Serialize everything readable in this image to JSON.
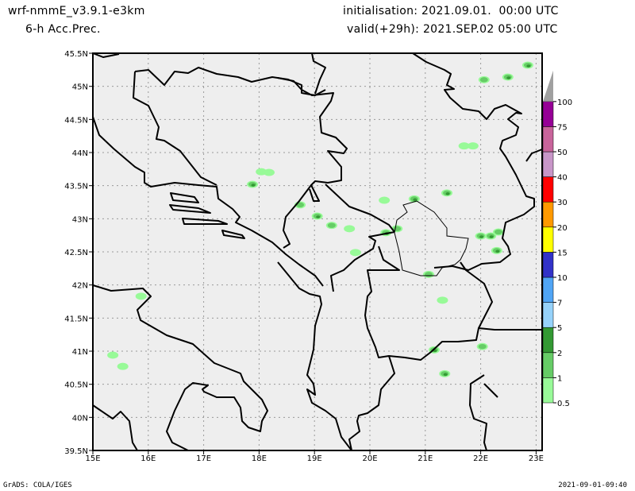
{
  "header": {
    "model": "wrf-nmmE_v3.9.1-e3km",
    "field": "6-h Acc.Prec.",
    "initialisation": "initialisation: 2021.09.01.  00:00 UTC",
    "valid": "valid(+29h): 2021.SEP.02 05:00 UTC"
  },
  "footer": {
    "left": "GrADS: COLA/IGES",
    "right": "2021-09-01-09:40"
  },
  "map": {
    "lon_range": [
      15,
      23.1
    ],
    "lat_range": [
      39.5,
      45.5
    ],
    "lon_ticks": [
      "15E",
      "16E",
      "17E",
      "18E",
      "19E",
      "20E",
      "21E",
      "22E",
      "23E"
    ],
    "lat_ticks": [
      "39.5N",
      "40N",
      "40.5N",
      "41N",
      "41.5N",
      "42N",
      "42.5N",
      "43N",
      "43.5N",
      "44N",
      "44.5N",
      "45N",
      "45.5N"
    ],
    "background_color": "#eeeeee",
    "grid": "dotted"
  },
  "colorbar": {
    "labels": [
      "0.5",
      "1",
      "2",
      "5",
      "7",
      "10",
      "15",
      "20",
      "30",
      "40",
      "50",
      "75",
      "100"
    ],
    "colors": [
      "#98fa98",
      "#66cc66",
      "#339933",
      "#96d2fa",
      "#50a5f5",
      "#3232c8",
      "#ffff00",
      "#ff9900",
      "#ff0000",
      "#c896c8",
      "#c8649b",
      "#960096"
    ],
    "over_color": "#a0a0a0"
  },
  "precip_cells": [
    {
      "lon": 17.88,
      "lat": 43.52,
      "level": 2
    },
    {
      "lon": 18.04,
      "lat": 43.71,
      "level": 0.5
    },
    {
      "lon": 18.18,
      "lat": 43.7,
      "level": 0.5
    },
    {
      "lon": 18.74,
      "lat": 43.21,
      "level": 1
    },
    {
      "lon": 19.05,
      "lat": 43.04,
      "level": 2
    },
    {
      "lon": 19.31,
      "lat": 42.9,
      "level": 1
    },
    {
      "lon": 19.63,
      "lat": 42.85,
      "level": 0.5
    },
    {
      "lon": 19.74,
      "lat": 42.49,
      "level": 0.5
    },
    {
      "lon": 20.29,
      "lat": 42.79,
      "level": 2
    },
    {
      "lon": 20.49,
      "lat": 42.85,
      "level": 1
    },
    {
      "lon": 20.26,
      "lat": 43.28,
      "level": 0.5
    },
    {
      "lon": 20.8,
      "lat": 43.3,
      "level": 2
    },
    {
      "lon": 21.39,
      "lat": 43.39,
      "level": 2
    },
    {
      "lon": 21.7,
      "lat": 44.1,
      "level": 0.5
    },
    {
      "lon": 21.86,
      "lat": 44.1,
      "level": 0.5
    },
    {
      "lon": 22.06,
      "lat": 45.1,
      "level": 1
    },
    {
      "lon": 22.49,
      "lat": 45.14,
      "level": 2
    },
    {
      "lon": 22.85,
      "lat": 45.32,
      "level": 2
    },
    {
      "lon": 22.0,
      "lat": 42.74,
      "level": 2
    },
    {
      "lon": 22.18,
      "lat": 42.74,
      "level": 2
    },
    {
      "lon": 22.32,
      "lat": 42.8,
      "level": 1
    },
    {
      "lon": 22.29,
      "lat": 42.52,
      "level": 2
    },
    {
      "lon": 21.16,
      "lat": 41.02,
      "level": 2
    },
    {
      "lon": 21.35,
      "lat": 40.66,
      "level": 2
    },
    {
      "lon": 21.31,
      "lat": 41.77,
      "level": 0.5
    },
    {
      "lon": 22.03,
      "lat": 41.07,
      "level": 1
    },
    {
      "lon": 21.06,
      "lat": 42.16,
      "level": 1
    },
    {
      "lon": 15.87,
      "lat": 41.83,
      "level": 0.5
    },
    {
      "lon": 15.36,
      "lat": 40.94,
      "level": 0.5
    },
    {
      "lon": 15.54,
      "lat": 40.77,
      "level": 0.5
    }
  ]
}
